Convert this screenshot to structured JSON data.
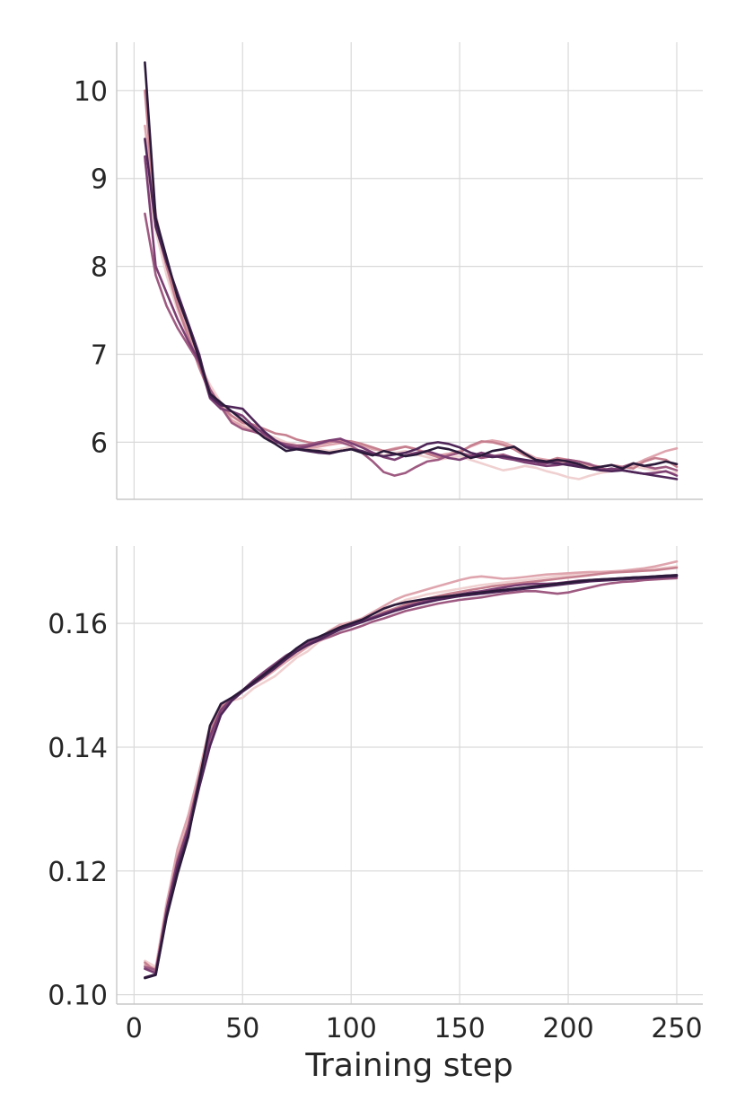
{
  "chart_data": [
    {
      "type": "line",
      "xlabel": "",
      "ylabel": "",
      "xlim": [
        -8,
        262
      ],
      "ylim": [
        5.35,
        10.55
      ],
      "xticks": [
        0,
        50,
        100,
        150,
        200,
        250
      ],
      "yticks": [
        6,
        7,
        8,
        9,
        10
      ],
      "xtick_labels": [
        "",
        "",
        "",
        "",
        "",
        ""
      ],
      "ytick_labels": [
        "6",
        "7",
        "8",
        "9",
        "10"
      ],
      "grid": true,
      "x": [
        5,
        10,
        15,
        20,
        25,
        30,
        35,
        40,
        45,
        50,
        55,
        60,
        65,
        70,
        75,
        80,
        85,
        90,
        95,
        100,
        105,
        110,
        115,
        120,
        125,
        130,
        135,
        140,
        145,
        150,
        155,
        160,
        165,
        170,
        175,
        180,
        185,
        190,
        195,
        200,
        205,
        210,
        215,
        220,
        225,
        230,
        235,
        240,
        245,
        250
      ],
      "series": [
        {
          "color": "#f0d0d0",
          "values": [
            9.2,
            8.4,
            7.9,
            7.5,
            7.2,
            6.9,
            6.65,
            6.45,
            6.3,
            6.2,
            6.15,
            6.1,
            6.05,
            6.0,
            5.97,
            5.95,
            5.92,
            5.9,
            5.92,
            5.95,
            5.9,
            5.88,
            5.85,
            5.88,
            5.9,
            5.86,
            5.83,
            5.8,
            5.82,
            5.84,
            5.8,
            5.76,
            5.72,
            5.68,
            5.7,
            5.73,
            5.71,
            5.67,
            5.64,
            5.6,
            5.58,
            5.62,
            5.65,
            5.67,
            5.7,
            5.73,
            5.7,
            5.68,
            5.66,
            5.65
          ]
        },
        {
          "color": "#dfa5ae",
          "values": [
            9.6,
            8.6,
            8.0,
            7.6,
            7.25,
            6.95,
            6.6,
            6.42,
            6.25,
            6.18,
            6.12,
            6.08,
            6.02,
            5.98,
            5.95,
            5.93,
            5.95,
            5.97,
            5.99,
            6.0,
            5.96,
            5.92,
            5.9,
            5.93,
            5.95,
            5.92,
            5.88,
            5.85,
            5.87,
            5.9,
            5.95,
            6.0,
            6.02,
            6.0,
            5.95,
            5.88,
            5.82,
            5.8,
            5.78,
            5.76,
            5.75,
            5.72,
            5.7,
            5.68,
            5.7,
            5.74,
            5.8,
            5.85,
            5.9,
            5.93
          ]
        },
        {
          "color": "#c6808f",
          "values": [
            10.0,
            8.5,
            8.0,
            7.55,
            7.2,
            6.85,
            6.55,
            6.4,
            6.3,
            6.22,
            6.2,
            6.15,
            6.1,
            6.08,
            6.03,
            6.0,
            5.98,
            6.0,
            6.02,
            6.01,
            5.98,
            5.94,
            5.9,
            5.92,
            5.95,
            5.92,
            5.87,
            5.83,
            5.85,
            5.88,
            5.96,
            6.01,
            6.0,
            5.97,
            5.92,
            5.85,
            5.8,
            5.78,
            5.82,
            5.8,
            5.78,
            5.74,
            5.72,
            5.74,
            5.72,
            5.7,
            5.78,
            5.82,
            5.8,
            5.72
          ]
        },
        {
          "color": "#9e5a81",
          "values": [
            8.6,
            7.9,
            7.55,
            7.3,
            7.1,
            6.9,
            6.6,
            6.4,
            6.22,
            6.15,
            6.12,
            6.08,
            6.0,
            5.98,
            5.96,
            5.97,
            6.0,
            6.02,
            6.0,
            5.96,
            5.88,
            5.78,
            5.66,
            5.62,
            5.65,
            5.72,
            5.78,
            5.8,
            5.85,
            5.88,
            5.85,
            5.82,
            5.84,
            5.86,
            5.82,
            5.78,
            5.75,
            5.76,
            5.78,
            5.8,
            5.78,
            5.75,
            5.7,
            5.68,
            5.72,
            5.76,
            5.73,
            5.7,
            5.72,
            5.68
          ]
        },
        {
          "color": "#7c3f73",
          "values": [
            9.25,
            8.0,
            7.7,
            7.4,
            7.15,
            6.92,
            6.5,
            6.38,
            6.35,
            6.3,
            6.18,
            6.1,
            6.02,
            5.96,
            5.93,
            5.95,
            5.98,
            6.02,
            6.04,
            5.99,
            5.94,
            5.88,
            5.83,
            5.8,
            5.85,
            5.88,
            5.9,
            5.86,
            5.82,
            5.8,
            5.84,
            5.88,
            5.85,
            5.82,
            5.8,
            5.77,
            5.75,
            5.73,
            5.74,
            5.76,
            5.74,
            5.7,
            5.68,
            5.7,
            5.68,
            5.66,
            5.64,
            5.65,
            5.67,
            5.62
          ]
        },
        {
          "color": "#4e2658",
          "values": [
            9.45,
            8.45,
            8.05,
            7.7,
            7.35,
            7.0,
            6.52,
            6.42,
            6.4,
            6.38,
            6.25,
            6.12,
            6.02,
            5.94,
            5.92,
            5.9,
            5.88,
            5.87,
            5.9,
            5.92,
            5.9,
            5.86,
            5.84,
            5.86,
            5.88,
            5.92,
            5.98,
            6.0,
            5.98,
            5.94,
            5.88,
            5.85,
            5.83,
            5.84,
            5.82,
            5.8,
            5.78,
            5.77,
            5.76,
            5.74,
            5.72,
            5.7,
            5.68,
            5.67,
            5.68,
            5.66,
            5.64,
            5.62,
            5.6,
            5.58
          ]
        },
        {
          "color": "#2b1a3a",
          "values": [
            10.32,
            8.55,
            8.1,
            7.65,
            7.32,
            6.95,
            6.55,
            6.45,
            6.35,
            6.25,
            6.15,
            6.05,
            5.98,
            5.9,
            5.92,
            5.91,
            5.9,
            5.88,
            5.9,
            5.92,
            5.88,
            5.85,
            5.9,
            5.87,
            5.84,
            5.86,
            5.9,
            5.94,
            5.92,
            5.88,
            5.82,
            5.85,
            5.9,
            5.92,
            5.95,
            5.87,
            5.8,
            5.78,
            5.8,
            5.78,
            5.75,
            5.7,
            5.72,
            5.74,
            5.7,
            5.76,
            5.73,
            5.75,
            5.78,
            5.75
          ]
        }
      ]
    },
    {
      "type": "line",
      "xlabel": "Training step",
      "ylabel": "",
      "xlim": [
        -8,
        262
      ],
      "ylim": [
        0.0985,
        0.1725
      ],
      "xticks": [
        0,
        50,
        100,
        150,
        200,
        250
      ],
      "yticks": [
        0.1,
        0.12,
        0.14,
        0.16
      ],
      "xtick_labels": [
        "0",
        "50",
        "100",
        "150",
        "200",
        "250"
      ],
      "ytick_labels": [
        "0.10",
        "0.12",
        "0.14",
        "0.16"
      ],
      "grid": true,
      "x": [
        5,
        10,
        15,
        20,
        25,
        30,
        35,
        40,
        45,
        50,
        55,
        60,
        65,
        70,
        75,
        80,
        85,
        90,
        95,
        100,
        105,
        110,
        115,
        120,
        125,
        130,
        135,
        140,
        145,
        150,
        155,
        160,
        165,
        170,
        175,
        180,
        185,
        190,
        195,
        200,
        205,
        210,
        215,
        220,
        225,
        230,
        235,
        240,
        245,
        250
      ],
      "series": [
        {
          "color": "#f0d0d0",
          "values": [
            0.1055,
            0.1045,
            0.115,
            0.1225,
            0.1285,
            0.1355,
            0.1425,
            0.146,
            0.1475,
            0.148,
            0.1495,
            0.1505,
            0.1515,
            0.153,
            0.1545,
            0.1555,
            0.157,
            0.158,
            0.1592,
            0.16,
            0.1605,
            0.1615,
            0.1622,
            0.163,
            0.1638,
            0.1642,
            0.1647,
            0.165,
            0.1653,
            0.1656,
            0.1659,
            0.1662,
            0.1664,
            0.1666,
            0.1668,
            0.167,
            0.1672,
            0.1674,
            0.1676,
            0.1678,
            0.168,
            0.1681,
            0.1682,
            0.1683,
            0.1684,
            0.1685,
            0.1686,
            0.1688,
            0.169,
            0.1692
          ]
        },
        {
          "color": "#dfa5ae",
          "values": [
            0.1048,
            0.1042,
            0.1145,
            0.1235,
            0.129,
            0.136,
            0.1435,
            0.1468,
            0.148,
            0.149,
            0.1502,
            0.1512,
            0.1525,
            0.1538,
            0.155,
            0.1562,
            0.1575,
            0.1588,
            0.1598,
            0.1602,
            0.1608,
            0.1618,
            0.1628,
            0.1638,
            0.1645,
            0.165,
            0.1655,
            0.166,
            0.1665,
            0.167,
            0.1674,
            0.1676,
            0.1674,
            0.1672,
            0.1673,
            0.1675,
            0.1677,
            0.1679,
            0.168,
            0.1681,
            0.1682,
            0.1683,
            0.1683,
            0.1684,
            0.1685,
            0.1687,
            0.1689,
            0.1692,
            0.1696,
            0.17
          ]
        },
        {
          "color": "#c6808f",
          "values": [
            0.1052,
            0.1038,
            0.1135,
            0.122,
            0.1275,
            0.135,
            0.1428,
            0.1465,
            0.148,
            0.1492,
            0.1505,
            0.1518,
            0.153,
            0.1542,
            0.1555,
            0.1568,
            0.1578,
            0.1585,
            0.1592,
            0.1598,
            0.1603,
            0.161,
            0.1618,
            0.1624,
            0.163,
            0.1635,
            0.164,
            0.1644,
            0.1648,
            0.1651,
            0.1654,
            0.1657,
            0.166,
            0.1662,
            0.1664,
            0.1666,
            0.1668,
            0.167,
            0.1672,
            0.1674,
            0.1676,
            0.1678,
            0.168,
            0.1682,
            0.1683,
            0.1684,
            0.1685,
            0.1686,
            0.1688,
            0.169
          ]
        },
        {
          "color": "#9e5a81",
          "values": [
            0.1045,
            0.104,
            0.113,
            0.121,
            0.1265,
            0.134,
            0.1408,
            0.1455,
            0.1475,
            0.149,
            0.1505,
            0.152,
            0.1532,
            0.1545,
            0.1556,
            0.1565,
            0.1572,
            0.1578,
            0.1585,
            0.159,
            0.1596,
            0.1603,
            0.1608,
            0.1614,
            0.162,
            0.1624,
            0.1628,
            0.1632,
            0.1635,
            0.1638,
            0.164,
            0.1642,
            0.1645,
            0.1648,
            0.165,
            0.1652,
            0.1652,
            0.165,
            0.1648,
            0.165,
            0.1654,
            0.1658,
            0.1662,
            0.1665,
            0.1667,
            0.1668,
            0.167,
            0.1671,
            0.1672,
            0.1673
          ]
        },
        {
          "color": "#7c3f73",
          "values": [
            0.1042,
            0.1035,
            0.1138,
            0.1215,
            0.127,
            0.1348,
            0.1418,
            0.146,
            0.1478,
            0.1492,
            0.1508,
            0.1522,
            0.1535,
            0.1548,
            0.1558,
            0.1568,
            0.1576,
            0.1584,
            0.1592,
            0.1598,
            0.1604,
            0.161,
            0.1616,
            0.1622,
            0.1627,
            0.1632,
            0.1636,
            0.164,
            0.1644,
            0.1647,
            0.165,
            0.1652,
            0.1655,
            0.1658,
            0.1661,
            0.1663,
            0.1664,
            0.1664,
            0.1665,
            0.1667,
            0.1669,
            0.167,
            0.1671,
            0.1672,
            0.1673,
            0.1674,
            0.1675,
            0.1676,
            0.1677,
            0.1678
          ]
        },
        {
          "color": "#4e2658",
          "values": [
            0.1028,
            0.1033,
            0.1128,
            0.1205,
            0.126,
            0.1335,
            0.1402,
            0.1452,
            0.1475,
            0.149,
            0.1502,
            0.1515,
            0.1528,
            0.1542,
            0.1555,
            0.1565,
            0.1573,
            0.1582,
            0.159,
            0.1596,
            0.1602,
            0.1608,
            0.1614,
            0.162,
            0.1625,
            0.163,
            0.1634,
            0.1638,
            0.1641,
            0.1644,
            0.1646,
            0.1648,
            0.165,
            0.1652,
            0.1654,
            0.1656,
            0.1658,
            0.166,
            0.1662,
            0.1664,
            0.1666,
            0.1668,
            0.1669,
            0.167,
            0.1671,
            0.1672,
            0.1673,
            0.1674,
            0.1675,
            0.1676
          ]
        },
        {
          "color": "#2b1a3a",
          "values": [
            0.1027,
            0.1032,
            0.1125,
            0.1195,
            0.1255,
            0.1345,
            0.1435,
            0.147,
            0.148,
            0.1492,
            0.1505,
            0.1518,
            0.1532,
            0.1546,
            0.156,
            0.1572,
            0.1578,
            0.1586,
            0.1594,
            0.16,
            0.1606,
            0.1615,
            0.1624,
            0.163,
            0.1634,
            0.1637,
            0.164,
            0.1642,
            0.1644,
            0.1646,
            0.1648,
            0.165,
            0.1652,
            0.1654,
            0.1656,
            0.1658,
            0.166,
            0.1662,
            0.1664,
            0.1666,
            0.1668,
            0.167,
            0.1671,
            0.1672,
            0.1673,
            0.1674,
            0.1675,
            0.1676,
            0.1677,
            0.1678
          ]
        }
      ]
    }
  ]
}
